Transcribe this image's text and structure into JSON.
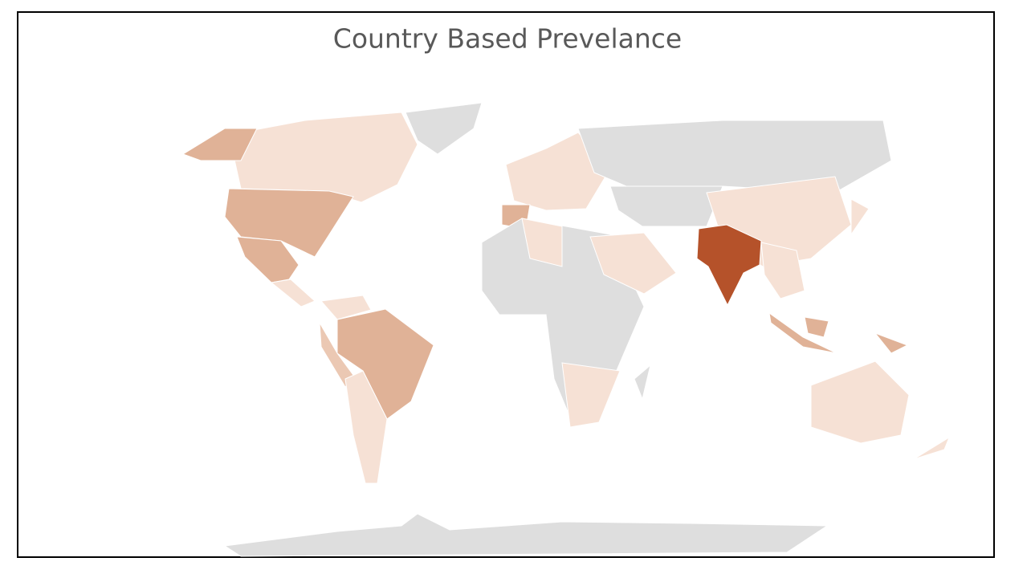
{
  "title": "Country Based Prevelance"
}
